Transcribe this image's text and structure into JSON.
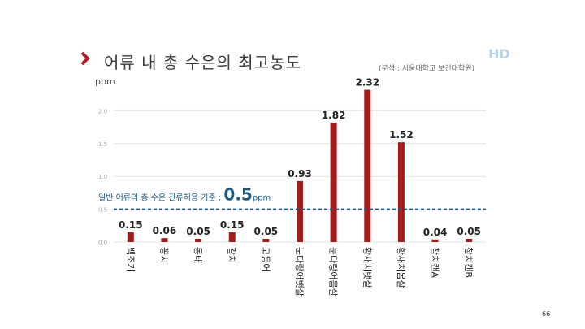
{
  "title": "어류 내 총 수은의 최고농도",
  "source": "(분석 : 서울대학교 보건대학원)",
  "hd_label": "HD",
  "page_number": "66",
  "colors": {
    "bar": "#a31c1c",
    "threshold": "#1a5a80",
    "accent": "#b21e24",
    "grid": "#e4e4e4"
  },
  "chart_data": {
    "type": "bar",
    "ylabel": "ppm",
    "ylim": [
      0,
      2.5
    ],
    "yticks": [
      "0.0",
      "0.5",
      "1.0",
      "1.5",
      "2.0"
    ],
    "ytick_values": [
      0,
      0.5,
      1.0,
      1.5,
      2.0
    ],
    "categories": [
      "백조기",
      "꽁치",
      "동태",
      "갈치",
      "고등어",
      "눈다랑어뱃살",
      "눈다랑어몸살",
      "황새치뱃살",
      "황새치몸살",
      "참치캔A",
      "참치캔B"
    ],
    "values": [
      0.15,
      0.06,
      0.05,
      0.15,
      0.05,
      0.93,
      1.82,
      2.32,
      1.52,
      0.04,
      0.05
    ],
    "value_labels": [
      "0.15",
      "0.06",
      "0.05",
      "0.15",
      "0.05",
      "0.93",
      "1.82",
      "2.32",
      "1.52",
      "0.04",
      "0.05"
    ],
    "threshold": {
      "value": 0.5,
      "label": "일반 어류의 총 수은 잔류허용 기준 :",
      "value_label": "0.5",
      "unit": "ppm"
    },
    "grid": true
  }
}
